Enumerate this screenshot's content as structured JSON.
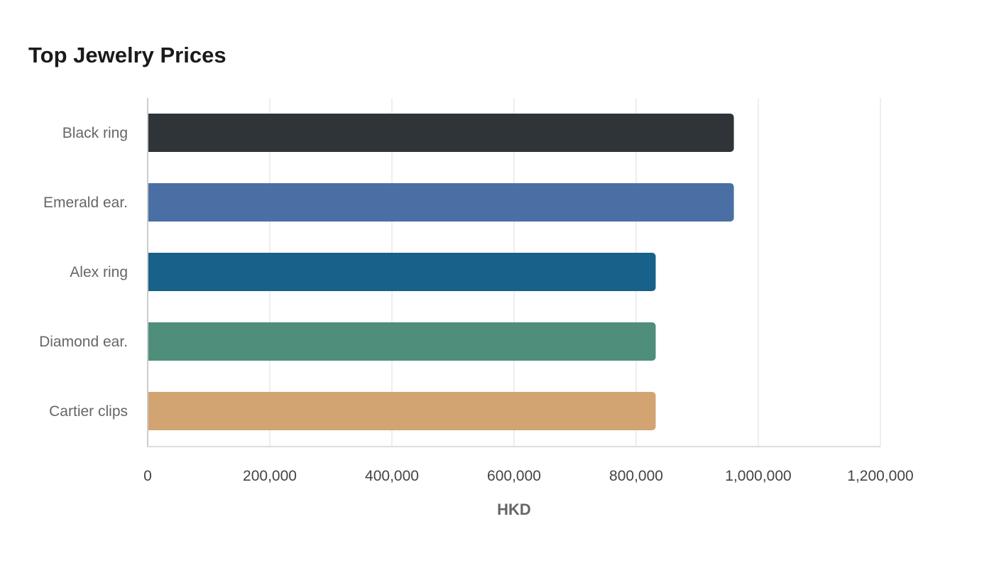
{
  "chart_data": {
    "type": "bar",
    "orientation": "horizontal",
    "title": "Top Jewelry Prices",
    "xlabel": "HKD",
    "ylabel": "",
    "categories": [
      "Black ring",
      "Emerald ear.",
      "Alex ring",
      "Diamond ear.",
      "Cartier clips"
    ],
    "values": [
      960000,
      960000,
      832000,
      832000,
      832000
    ],
    "colors": [
      "#2e3437",
      "#4a6fa5",
      "#17618a",
      "#4e8e7b",
      "#d2a472"
    ],
    "xlim": [
      0,
      1200000
    ],
    "xticks": [
      0,
      200000,
      400000,
      600000,
      800000,
      1000000,
      1200000
    ],
    "xtick_labels": [
      "0",
      "200,000",
      "400,000",
      "600,000",
      "800,000",
      "1,000,000",
      "1,200,000"
    ],
    "grid": true,
    "legend": "none"
  }
}
